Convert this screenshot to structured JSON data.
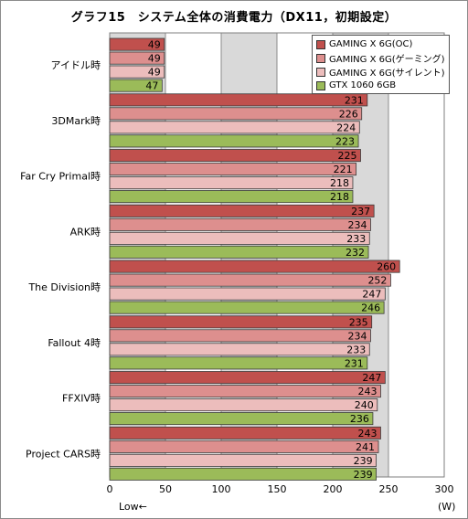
{
  "chart_data": {
    "type": "bar",
    "orientation": "horizontal",
    "title": "グラフ15　システム全体の消費電力（DX11，初期設定）",
    "categories": [
      "アイドル時",
      "3DMark時",
      "Far Cry Primal時",
      "ARK時",
      "The Division時",
      "Fallout 4時",
      "FFXIV時",
      "Project CARS時"
    ],
    "series": [
      {
        "name": "GAMING X 6G(OC)",
        "color": "#c0504d",
        "values": [
          49,
          231,
          225,
          237,
          260,
          235,
          247,
          243
        ]
      },
      {
        "name": "GAMING X 6G(ゲーミング)",
        "color": "#dd8f8e",
        "values": [
          49,
          226,
          221,
          234,
          252,
          234,
          243,
          241
        ]
      },
      {
        "name": "GAMING X 6G(サイレント)",
        "color": "#ecbdbc",
        "values": [
          49,
          224,
          218,
          233,
          247,
          233,
          240,
          239
        ]
      },
      {
        "name": "GTX 1060 6GB",
        "color": "#9bbb59",
        "values": [
          47,
          223,
          218,
          232,
          246,
          231,
          236,
          239
        ]
      }
    ],
    "xlim": [
      0,
      300
    ],
    "xticks": [
      0,
      50,
      100,
      150,
      200,
      250,
      300
    ],
    "xlabel": "(W)",
    "direction_note": "Low←",
    "grid": true,
    "legend_position": "top-right"
  }
}
